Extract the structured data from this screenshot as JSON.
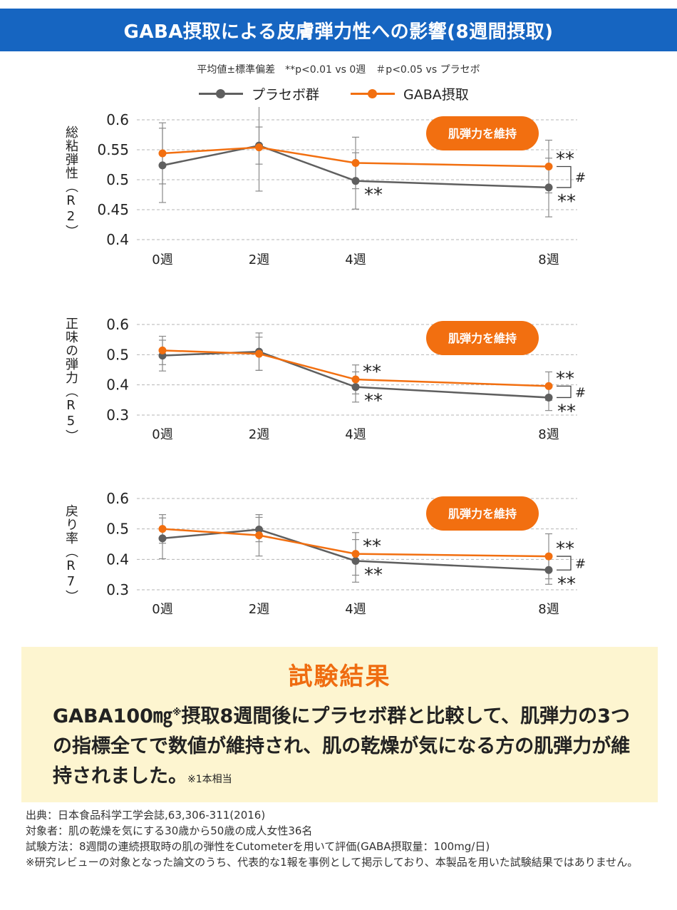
{
  "title": "GABA摂取による皮膚弾力性への影響(8週間摂取)",
  "note": "平均値±標準偏差　**p<0.01 vs 0週　＃p<0.05 vs プラセボ",
  "legend": [
    {
      "name": "プラセボ群",
      "color": "#5f5f5f"
    },
    {
      "name": "GABA摂取",
      "color": "#f26f10"
    }
  ],
  "badge_label": "肌弾力を維持",
  "chart_data": [
    {
      "type": "line",
      "ylabel": "総粘弾性（R2）",
      "x": [
        "0週",
        "2週",
        "4週",
        "8週"
      ],
      "x_weeks": [
        0,
        2,
        4,
        8
      ],
      "ylim": [
        0.4,
        0.6
      ],
      "yticks": [
        0.4,
        0.45,
        0.5,
        0.55,
        0.6
      ],
      "ytick_labels": [
        "0.4",
        "0.45",
        "0.5",
        "0.55",
        "0.6"
      ],
      "grid": true,
      "series": [
        {
          "name": "プラセボ群",
          "values": [
            0.524,
            0.557,
            0.498,
            0.487
          ],
          "error": [
            0.062,
            0.031,
            0.047,
            0.049
          ]
        },
        {
          "name": "GABA摂取",
          "values": [
            0.544,
            0.554,
            0.528,
            0.522
          ],
          "error": [
            0.051,
            0.073,
            0.043,
            0.044
          ]
        }
      ],
      "annotations": {
        "placebo_marks": [
          "",
          "",
          "**",
          "**"
        ],
        "gaba_marks": [
          "",
          "",
          "",
          "**"
        ],
        "between_groups": "#"
      }
    },
    {
      "type": "line",
      "ylabel": "正味の弾力（R5）",
      "x": [
        "0週",
        "2週",
        "4週",
        "8週"
      ],
      "x_weeks": [
        0,
        2,
        4,
        8
      ],
      "ylim": [
        0.3,
        0.6
      ],
      "yticks": [
        0.3,
        0.4,
        0.5,
        0.6
      ],
      "ytick_labels": [
        "0.3",
        "0.4",
        "0.5",
        "0.6"
      ],
      "grid": true,
      "series": [
        {
          "name": "プラセボ群",
          "values": [
            0.497,
            0.51,
            0.393,
            0.358
          ],
          "error": [
            0.051,
            0.062,
            0.05,
            0.043
          ]
        },
        {
          "name": "GABA摂取",
          "values": [
            0.514,
            0.503,
            0.418,
            0.396
          ],
          "error": [
            0.047,
            0.055,
            0.048,
            0.047
          ]
        }
      ],
      "annotations": {
        "placebo_marks": [
          "",
          "",
          "**",
          "**"
        ],
        "gaba_marks": [
          "",
          "",
          "**",
          "**"
        ],
        "between_groups": "#"
      }
    },
    {
      "type": "line",
      "ylabel": "戻り率（R7）",
      "x": [
        "0週",
        "2週",
        "4週",
        "8週"
      ],
      "x_weeks": [
        0,
        2,
        4,
        8
      ],
      "ylim": [
        0.3,
        0.6
      ],
      "yticks": [
        0.3,
        0.4,
        0.5,
        0.6
      ],
      "ytick_labels": [
        "0.3",
        "0.4",
        "0.5",
        "0.6"
      ],
      "grid": true,
      "series": [
        {
          "name": "プラセボ群",
          "values": [
            0.469,
            0.498,
            0.395,
            0.365
          ],
          "error": [
            0.067,
            0.04,
            0.07,
            0.047
          ]
        },
        {
          "name": "GABA摂取",
          "values": [
            0.5,
            0.479,
            0.418,
            0.41
          ],
          "error": [
            0.047,
            0.068,
            0.07,
            0.074
          ]
        }
      ],
      "annotations": {
        "placebo_marks": [
          "",
          "",
          "**",
          "**"
        ],
        "gaba_marks": [
          "",
          "",
          "**",
          "**"
        ],
        "between_groups": "#"
      }
    }
  ],
  "results": {
    "title": "試験結果",
    "text_part1": "GABA100㎎",
    "text_sup": "※",
    "text_part2": "摂取8週間後にプラセボ群と比較して、肌弾力の3つの指標全てで数値が維持され、肌の乾燥が気になる方の肌弾力が維持されました。",
    "note": "※1本相当"
  },
  "footer": [
    "出典：日本食品科学工学会誌,63,306-311(2016)",
    "対象者：肌の乾燥を気にする30歳から50歳の成人女性36名",
    "試験方法：8週間の連続摂取時の肌の弾性をCutometerを用いて評価(GABA摂取量：100mg/日)",
    "※研究レビューの対象となった論文のうち、代表的な1報を事例として掲示しており、本製品を用いた試験結果ではありません。"
  ]
}
